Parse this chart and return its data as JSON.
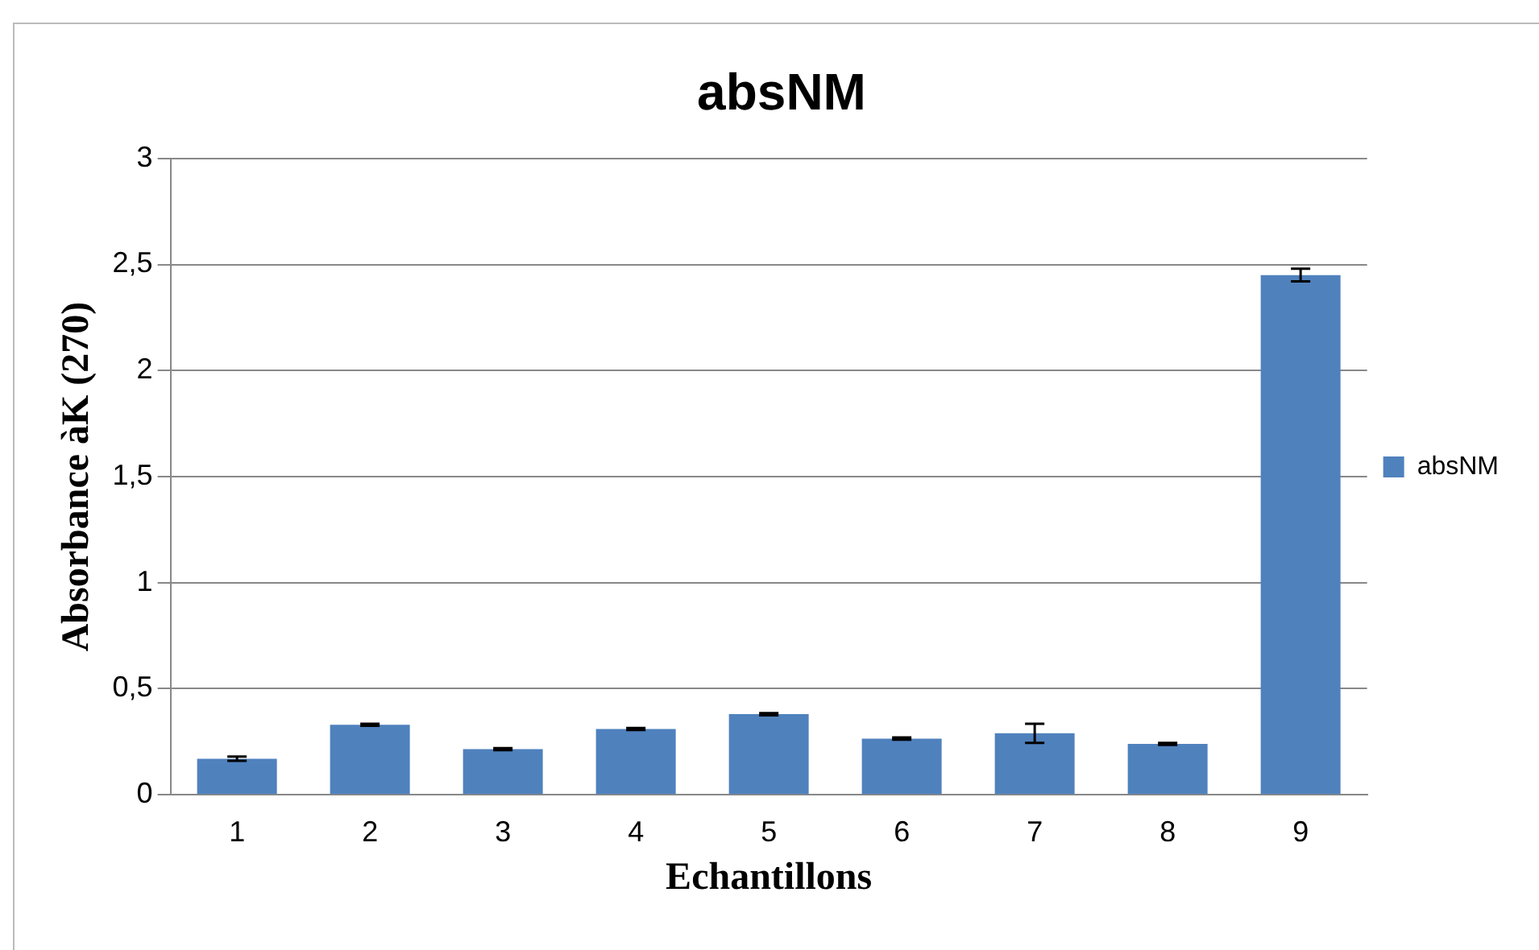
{
  "chart_data": {
    "type": "bar",
    "title": "absNM",
    "xlabel": "Echantillons",
    "ylabel": "Absorbance àK (270)",
    "categories": [
      "1",
      "2",
      "3",
      "4",
      "5",
      "6",
      "7",
      "8",
      "9"
    ],
    "series": [
      {
        "name": "absNM",
        "color": "#4f81bd",
        "values": [
          0.17,
          0.33,
          0.215,
          0.31,
          0.38,
          0.265,
          0.29,
          0.24,
          2.45
        ],
        "errors": [
          0.01,
          0.005,
          0.005,
          0.005,
          0.005,
          0.005,
          0.045,
          0.005,
          0.03
        ]
      }
    ],
    "ylim": [
      0,
      3
    ],
    "yticks": [
      0,
      {
        "value": 0.5,
        "label": "0,5"
      },
      1,
      {
        "value": 1.5,
        "label": "1,5"
      },
      2,
      {
        "value": 2.5,
        "label": "2,5"
      },
      3
    ],
    "grid": "y",
    "legend": "right"
  }
}
